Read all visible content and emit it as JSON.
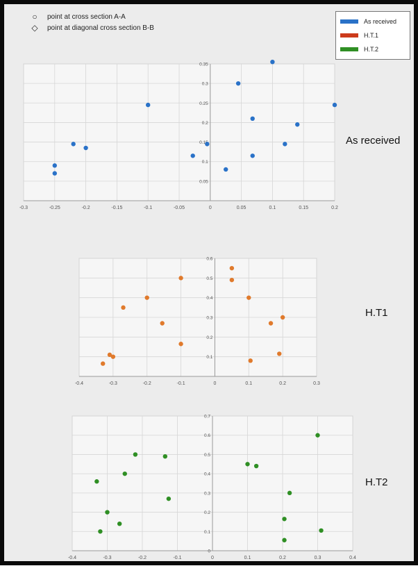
{
  "shape_legend": [
    {
      "glyph": "○",
      "icon": "circle-icon",
      "label": "point at cross section A-A"
    },
    {
      "glyph": "◇",
      "icon": "diamond-icon",
      "label": "point at  diagonal cross section B-B"
    }
  ],
  "series_legend": [
    {
      "label": "As received",
      "color": "#2a72c8"
    },
    {
      "label": "H.T.1",
      "color": "#cc3b1c"
    },
    {
      "label": "H.T.2",
      "color": "#2f8f24"
    }
  ],
  "chart_data": [
    {
      "type": "scatter",
      "title": "",
      "label": "As received",
      "color": "#2a72c8",
      "xlim": [
        -0.3,
        0.2
      ],
      "ylim": [
        0,
        0.35
      ],
      "xticks": [
        "-0.3",
        "-0.25",
        "-0.2",
        "-0.15",
        "-0.1",
        "-0.05",
        "0",
        "0.05",
        "0.1",
        "0.15",
        "0.2"
      ],
      "xtick_values": [
        -0.3,
        -0.25,
        -0.2,
        -0.15,
        -0.1,
        -0.05,
        0,
        0.05,
        0.1,
        0.15,
        0.2
      ],
      "yticks": [
        "0.05",
        "0.1",
        "0.15",
        "0.2",
        "0.25",
        "0.3",
        "0.35"
      ],
      "ytick_values": [
        0.05,
        0.1,
        0.15,
        0.2,
        0.25,
        0.3,
        0.35
      ],
      "grid": true,
      "points": [
        {
          "x": -0.25,
          "y": 0.09
        },
        {
          "x": -0.25,
          "y": 0.07
        },
        {
          "x": -0.22,
          "y": 0.145
        },
        {
          "x": -0.2,
          "y": 0.135
        },
        {
          "x": -0.1,
          "y": 0.245
        },
        {
          "x": -0.028,
          "y": 0.115
        },
        {
          "x": -0.005,
          "y": 0.145
        },
        {
          "x": 0.025,
          "y": 0.08
        },
        {
          "x": 0.045,
          "y": 0.3
        },
        {
          "x": 0.068,
          "y": 0.21
        },
        {
          "x": 0.068,
          "y": 0.115
        },
        {
          "x": 0.1,
          "y": 0.355
        },
        {
          "x": 0.12,
          "y": 0.145
        },
        {
          "x": 0.14,
          "y": 0.195
        },
        {
          "x": 0.2,
          "y": 0.245
        }
      ]
    },
    {
      "type": "scatter",
      "title": "",
      "label": "H.T1",
      "color": "#e07a2c",
      "xlim": [
        -0.4,
        0.3
      ],
      "ylim": [
        0,
        0.6
      ],
      "xticks": [
        "-0.4",
        "-0.3",
        "-0.2",
        "-0.1",
        "0",
        "0.1",
        "0.2",
        "0.3"
      ],
      "xtick_values": [
        -0.4,
        -0.3,
        -0.2,
        -0.1,
        0,
        0.1,
        0.2,
        0.3
      ],
      "yticks": [
        "0.1",
        "0.2",
        "0.3",
        "0.4",
        "0.5",
        "0.6"
      ],
      "ytick_values": [
        0.1,
        0.2,
        0.3,
        0.4,
        0.5,
        0.6
      ],
      "grid": true,
      "points": [
        {
          "x": -0.33,
          "y": 0.065
        },
        {
          "x": -0.31,
          "y": 0.11
        },
        {
          "x": -0.3,
          "y": 0.1
        },
        {
          "x": -0.27,
          "y": 0.35
        },
        {
          "x": -0.2,
          "y": 0.4
        },
        {
          "x": -0.155,
          "y": 0.27
        },
        {
          "x": -0.1,
          "y": 0.5
        },
        {
          "x": -0.1,
          "y": 0.165
        },
        {
          "x": 0.05,
          "y": 0.55
        },
        {
          "x": 0.05,
          "y": 0.49
        },
        {
          "x": 0.1,
          "y": 0.4
        },
        {
          "x": 0.105,
          "y": 0.08
        },
        {
          "x": 0.165,
          "y": 0.27
        },
        {
          "x": 0.19,
          "y": 0.115
        },
        {
          "x": 0.2,
          "y": 0.3
        }
      ]
    },
    {
      "type": "scatter",
      "title": "",
      "label": "H.T2",
      "color": "#2f8f24",
      "xlim": [
        -0.4,
        0.4
      ],
      "ylim": [
        0,
        0.7
      ],
      "xticks": [
        "-0.4",
        "-0.3",
        "-0.2",
        "-0.1",
        "0",
        "0.1",
        "0.2",
        "0.3",
        "0.4"
      ],
      "xtick_values": [
        -0.4,
        -0.3,
        -0.2,
        -0.1,
        0,
        0.1,
        0.2,
        0.3,
        0.4
      ],
      "yticks": [
        "0",
        "0.1",
        "0.2",
        "0.3",
        "0.4",
        "0.5",
        "0.6",
        "0.7"
      ],
      "ytick_values": [
        0,
        0.1,
        0.2,
        0.3,
        0.4,
        0.5,
        0.6,
        0.7
      ],
      "grid": true,
      "points": [
        {
          "x": -0.33,
          "y": 0.36
        },
        {
          "x": -0.32,
          "y": 0.1
        },
        {
          "x": -0.3,
          "y": 0.2
        },
        {
          "x": -0.265,
          "y": 0.14
        },
        {
          "x": -0.25,
          "y": 0.4
        },
        {
          "x": -0.22,
          "y": 0.5
        },
        {
          "x": -0.135,
          "y": 0.49
        },
        {
          "x": -0.125,
          "y": 0.27
        },
        {
          "x": 0.1,
          "y": 0.45
        },
        {
          "x": 0.125,
          "y": 0.44
        },
        {
          "x": 0.205,
          "y": 0.165
        },
        {
          "x": 0.205,
          "y": 0.055
        },
        {
          "x": 0.22,
          "y": 0.3
        },
        {
          "x": 0.3,
          "y": 0.6
        },
        {
          "x": 0.31,
          "y": 0.105
        }
      ]
    }
  ]
}
